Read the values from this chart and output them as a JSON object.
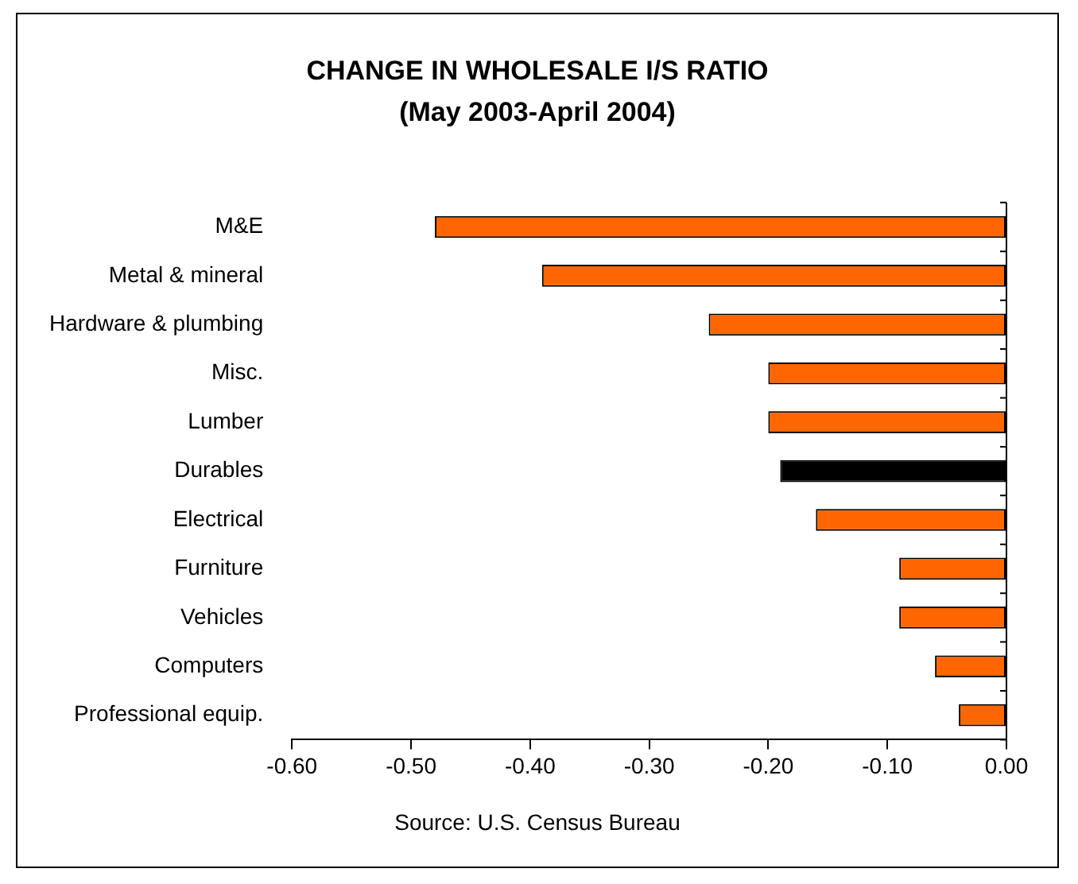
{
  "chart_data": {
    "type": "bar",
    "orientation": "horizontal",
    "title": "CHANGE IN WHOLESALE I/S RATIO",
    "subtitle": "(May 2003-April 2004)",
    "categories": [
      "M&E",
      "Metal & mineral",
      "Hardware & plumbing",
      "Misc.",
      "Lumber",
      "Durables",
      "Electrical",
      "Furniture",
      "Vehicles",
      "Computers",
      "Professional equip."
    ],
    "values": [
      -0.48,
      -0.39,
      -0.25,
      -0.2,
      -0.2,
      -0.19,
      -0.16,
      -0.09,
      -0.09,
      -0.06,
      -0.04
    ],
    "colors": [
      "#ff6600",
      "#ff6600",
      "#ff6600",
      "#ff6600",
      "#ff6600",
      "#000000",
      "#ff6600",
      "#ff6600",
      "#ff6600",
      "#ff6600",
      "#ff6600"
    ],
    "xlim": [
      -0.6,
      0
    ],
    "xticks": [
      {
        "value": -0.6,
        "label": "-0.60"
      },
      {
        "value": -0.5,
        "label": "-0.50"
      },
      {
        "value": -0.4,
        "label": "-0.40"
      },
      {
        "value": -0.3,
        "label": "-0.30"
      },
      {
        "value": -0.2,
        "label": "-0.20"
      },
      {
        "value": -0.1,
        "label": "-0.10"
      },
      {
        "value": 0,
        "label": "0.00"
      }
    ],
    "grid": false,
    "legend": false,
    "annotations": [
      "Source: U.S. Census Bureau"
    ]
  }
}
